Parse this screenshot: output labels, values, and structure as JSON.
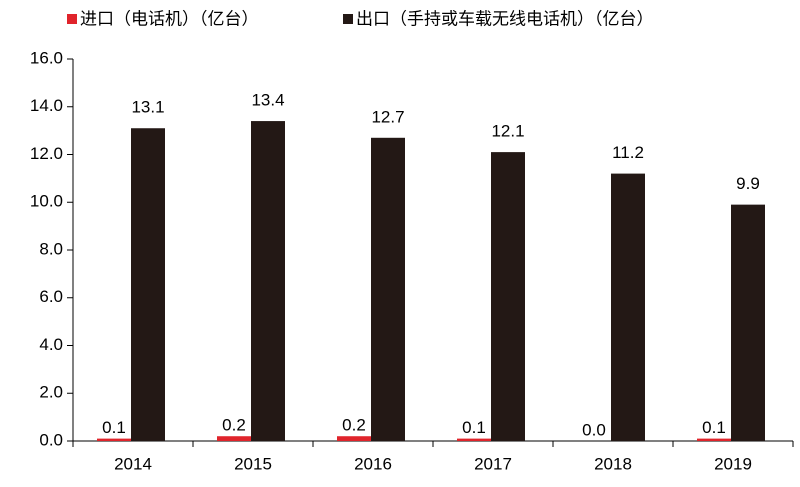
{
  "chart_data": {
    "type": "bar",
    "categories": [
      "2014",
      "2015",
      "2016",
      "2017",
      "2018",
      "2019"
    ],
    "series": [
      {
        "name": "进口（电话机）（亿台）",
        "color": "#e0242b",
        "values": [
          0.1,
          0.2,
          0.2,
          0.1,
          0.0,
          0.1
        ],
        "value_labels": [
          "0.1",
          "0.2",
          "0.2",
          "0.1",
          "0.0",
          "0.1"
        ]
      },
      {
        "name": "出口（手持或车载无线电话机）（亿台）",
        "color": "#231815",
        "values": [
          13.1,
          13.4,
          12.7,
          12.1,
          11.2,
          9.9
        ]
      }
    ],
    "ylim": [
      0,
      16
    ],
    "yticks": [
      {
        "value": 0,
        "label": "0.0"
      },
      {
        "value": 2,
        "label": "2.0"
      },
      {
        "value": 4,
        "label": "4.0"
      },
      {
        "value": 6,
        "label": "6.0"
      },
      {
        "value": 8,
        "label": "8.0"
      },
      {
        "value": 10,
        "label": "10.0"
      },
      {
        "value": 12,
        "label": "12.0"
      },
      {
        "value": 14,
        "label": "14.0"
      },
      {
        "value": 16,
        "label": "16.0"
      }
    ],
    "legend": "top"
  }
}
